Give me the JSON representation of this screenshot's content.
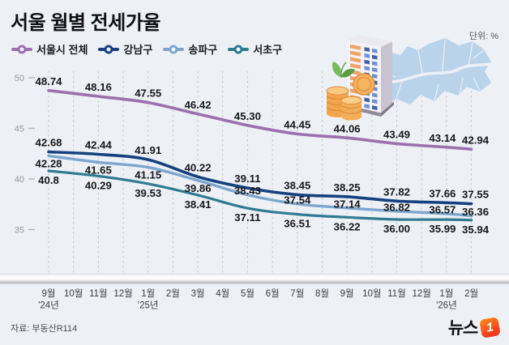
{
  "header": {
    "title": "서울 월별 전세가율",
    "unit_label": "단위: %"
  },
  "footer": {
    "source": "자료: 부동산R114",
    "logo_text": "뉴스",
    "logo_badge": "1"
  },
  "chart_data": {
    "type": "line",
    "title": "서울 월별 전세가율",
    "unit": "%",
    "grid": "vertical-dashed",
    "legend_position": "top-left",
    "y_axis": {
      "ticks": [
        50,
        45,
        40,
        35
      ],
      "visible_range": [
        33,
        51
      ]
    },
    "x_ticks": [
      {
        "month": "9월",
        "year": "'24년"
      },
      {
        "month": "10월"
      },
      {
        "month": "11월"
      },
      {
        "month": "12월"
      },
      {
        "month": "1월",
        "year": "'25년"
      },
      {
        "month": "2월"
      },
      {
        "month": "3월"
      },
      {
        "month": "4월"
      },
      {
        "month": "5월"
      },
      {
        "month": "6월"
      },
      {
        "month": "7월"
      },
      {
        "month": "8월"
      },
      {
        "month": "9월"
      },
      {
        "month": "10월"
      },
      {
        "month": "11월"
      },
      {
        "month": "12월"
      },
      {
        "month": "1월",
        "year": "'26년"
      },
      {
        "month": "2월"
      }
    ],
    "labeled_tick_indices": [
      0,
      2,
      4,
      6,
      8,
      10,
      12,
      14,
      16,
      17
    ],
    "series": [
      {
        "name": "서울시 전체",
        "color": "#9c6fae",
        "values": [
          48.74,
          48.16,
          47.55,
          46.42,
          45.3,
          44.45,
          44.06,
          43.49,
          43.14,
          42.94
        ],
        "labels": [
          "48.74",
          "48.16",
          "47.55",
          "46.42",
          "45.30",
          "44.45",
          "44.06",
          "43.49",
          "43.14",
          "42.94"
        ]
      },
      {
        "name": "강남구",
        "color": "#16417f",
        "values": [
          42.68,
          42.44,
          41.91,
          40.22,
          39.11,
          38.45,
          38.25,
          37.82,
          37.66,
          37.55
        ],
        "labels": [
          "42.68",
          "42.44",
          "41.91",
          "40.22",
          "39.11",
          "38.45",
          "38.25",
          "37.82",
          "37.66",
          "37.55"
        ]
      },
      {
        "name": "송파구",
        "color": "#7ca6ce",
        "values": [
          42.28,
          41.65,
          41.15,
          39.86,
          38.43,
          37.54,
          37.14,
          36.82,
          36.57,
          36.36
        ],
        "labels": [
          "42.28",
          "41.65",
          "41.15",
          "39.86",
          "38.43",
          "37.54",
          "37.14",
          "36.82",
          "36.57",
          "36.36"
        ]
      },
      {
        "name": "서초구",
        "color": "#2f7b94",
        "values": [
          40.8,
          40.29,
          39.53,
          38.41,
          37.11,
          36.51,
          36.22,
          36.0,
          35.99,
          35.94
        ],
        "labels": [
          "40.8",
          "40.29",
          "39.53",
          "38.41",
          "37.11",
          "36.51",
          "36.22",
          "36.00",
          "35.99",
          "35.94"
        ]
      }
    ]
  }
}
